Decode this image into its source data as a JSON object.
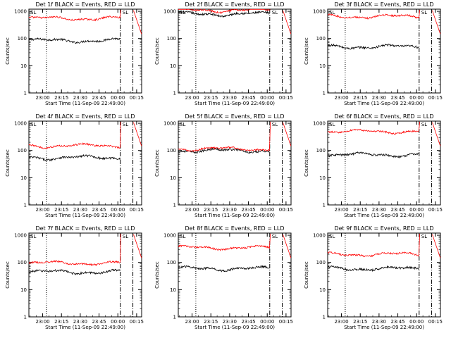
{
  "figure": {
    "background": "#ffffff",
    "events_color": "#000000",
    "lld_color": "#ff0000",
    "marker_text": "SL",
    "axis": {
      "ylabel": "Counts/sec",
      "xlabel": "Start Time (11-Sep-09 22:49:00)",
      "xticks": [
        "23:00",
        "23:15",
        "23:30",
        "23:45",
        "00:00",
        "00:15"
      ],
      "yticks": [
        "1",
        "10",
        "100",
        "1000"
      ]
    }
  },
  "chart_data": [
    {
      "type": "line",
      "title": "Det 1f BLACK = Events, RED = LLD",
      "yscale": "log",
      "ylim": [
        1,
        1200
      ],
      "xlim_minutes_from_start": [
        0,
        90
      ],
      "vlines_minutes": [
        14,
        73,
        83,
        90
      ],
      "series": [
        {
          "name": "Events",
          "approx_level": 85
        },
        {
          "name": "LLD",
          "approx_level": 550
        }
      ]
    },
    {
      "type": "line",
      "title": "Det 2f BLACK = Events, RED = LLD",
      "yscale": "log",
      "ylim": [
        1,
        1200
      ],
      "xlim_minutes_from_start": [
        0,
        90
      ],
      "vlines_minutes": [
        14,
        73,
        83,
        90
      ],
      "series": [
        {
          "name": "Events",
          "approx_level": 800
        },
        {
          "name": "LLD",
          "approx_level": 1100
        }
      ]
    },
    {
      "type": "line",
      "title": "Det 3f BLACK = Events, RED = LLD",
      "yscale": "log",
      "ylim": [
        1,
        1200
      ],
      "xlim_minutes_from_start": [
        0,
        90
      ],
      "vlines_minutes": [
        14,
        73,
        83,
        90
      ],
      "series": [
        {
          "name": "Events",
          "approx_level": 50
        },
        {
          "name": "LLD",
          "approx_level": 650
        }
      ]
    },
    {
      "type": "line",
      "title": "Det 4f BLACK = Events, RED = LLD",
      "yscale": "log",
      "ylim": [
        1,
        1200
      ],
      "xlim_minutes_from_start": [
        0,
        90
      ],
      "vlines_minutes": [
        14,
        73,
        83,
        90
      ],
      "series": [
        {
          "name": "Events",
          "approx_level": 55
        },
        {
          "name": "LLD",
          "approx_level": 150
        }
      ]
    },
    {
      "type": "line",
      "title": "Det 5f BLACK = Events, RED = LLD",
      "yscale": "log",
      "ylim": [
        1,
        1200
      ],
      "xlim_minutes_from_start": [
        0,
        90
      ],
      "vlines_minutes": [
        14,
        73,
        83,
        90
      ],
      "series": [
        {
          "name": "Events",
          "approx_level": 100
        },
        {
          "name": "LLD",
          "approx_level": 115
        }
      ]
    },
    {
      "type": "line",
      "title": "Det 6f BLACK = Events, RED = LLD",
      "yscale": "log",
      "ylim": [
        1,
        1200
      ],
      "xlim_minutes_from_start": [
        0,
        90
      ],
      "vlines_minutes": [
        14,
        73,
        83,
        90
      ],
      "series": [
        {
          "name": "Events",
          "approx_level": 70
        },
        {
          "name": "LLD",
          "approx_level": 500
        }
      ]
    },
    {
      "type": "line",
      "title": "Det 7f BLACK = Events, RED = LLD",
      "yscale": "log",
      "ylim": [
        1,
        1200
      ],
      "xlim_minutes_from_start": [
        0,
        90
      ],
      "vlines_minutes": [
        14,
        73,
        83,
        90
      ],
      "series": [
        {
          "name": "Events",
          "approx_level": 45
        },
        {
          "name": "LLD",
          "approx_level": 95
        }
      ]
    },
    {
      "type": "line",
      "title": "Det 8f BLACK = Events, RED = LLD",
      "yscale": "log",
      "ylim": [
        1,
        1200
      ],
      "xlim_minutes_from_start": [
        0,
        90
      ],
      "vlines_minutes": [
        14,
        73,
        83,
        90
      ],
      "series": [
        {
          "name": "Events",
          "approx_level": 60
        },
        {
          "name": "LLD",
          "approx_level": 350
        }
      ]
    },
    {
      "type": "line",
      "title": "Det 9f BLACK = Events, RED = LLD",
      "yscale": "log",
      "ylim": [
        1,
        1200
      ],
      "xlim_minutes_from_start": [
        0,
        90
      ],
      "vlines_minutes": [
        14,
        73,
        83,
        90
      ],
      "series": [
        {
          "name": "Events",
          "approx_level": 60
        },
        {
          "name": "LLD",
          "approx_level": 200
        }
      ]
    }
  ]
}
